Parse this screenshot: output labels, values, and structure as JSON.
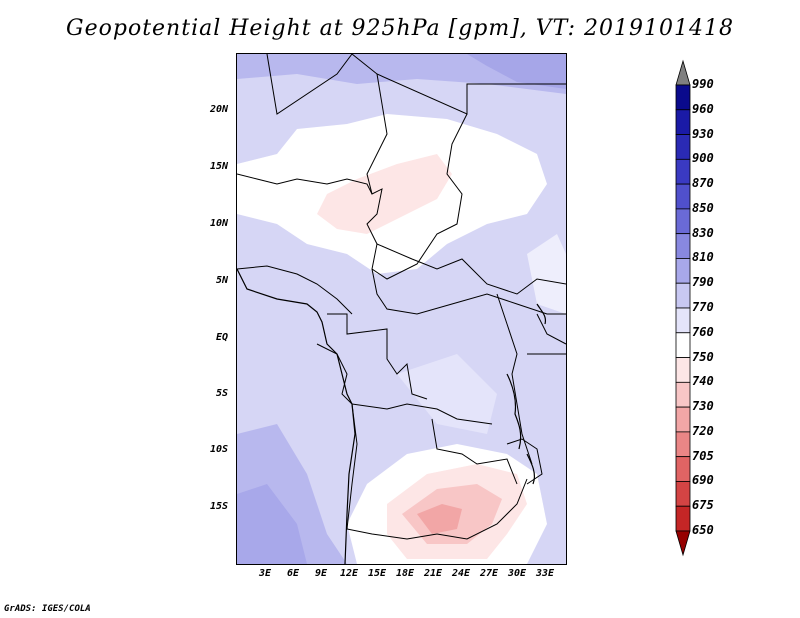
{
  "title": "Geopotential Height at 925hPa [gpm], VT: 2019101418",
  "credit": "GrADS: IGES/COLA",
  "map": {
    "region": "Central Africa",
    "y_ticks": [
      "20N",
      "15N",
      "10N",
      "5N",
      "EQ",
      "5S",
      "10S",
      "15S"
    ],
    "x_ticks": [
      "3E",
      "6E",
      "9E",
      "12E",
      "15E",
      "18E",
      "21E",
      "24E",
      "27E",
      "30E",
      "33E"
    ]
  },
  "colorbar": {
    "levels": [
      "990",
      "960",
      "930",
      "900",
      "870",
      "850",
      "830",
      "810",
      "790",
      "770",
      "760",
      "750",
      "740",
      "730",
      "720",
      "705",
      "690",
      "675",
      "650"
    ],
    "colors": [
      "#0a0a8c",
      "#1a1aa6",
      "#2a2ab4",
      "#3a3ac2",
      "#5050cc",
      "#6a6ad6",
      "#8888e0",
      "#a8a8ea",
      "#c8c8f2",
      "#e4e4fa",
      "#ffffff",
      "#fde6e6",
      "#f8c6c6",
      "#f2a6a6",
      "#ea8686",
      "#e06464",
      "#d44444",
      "#c42626",
      "#ae1010",
      "#960000"
    ]
  }
}
